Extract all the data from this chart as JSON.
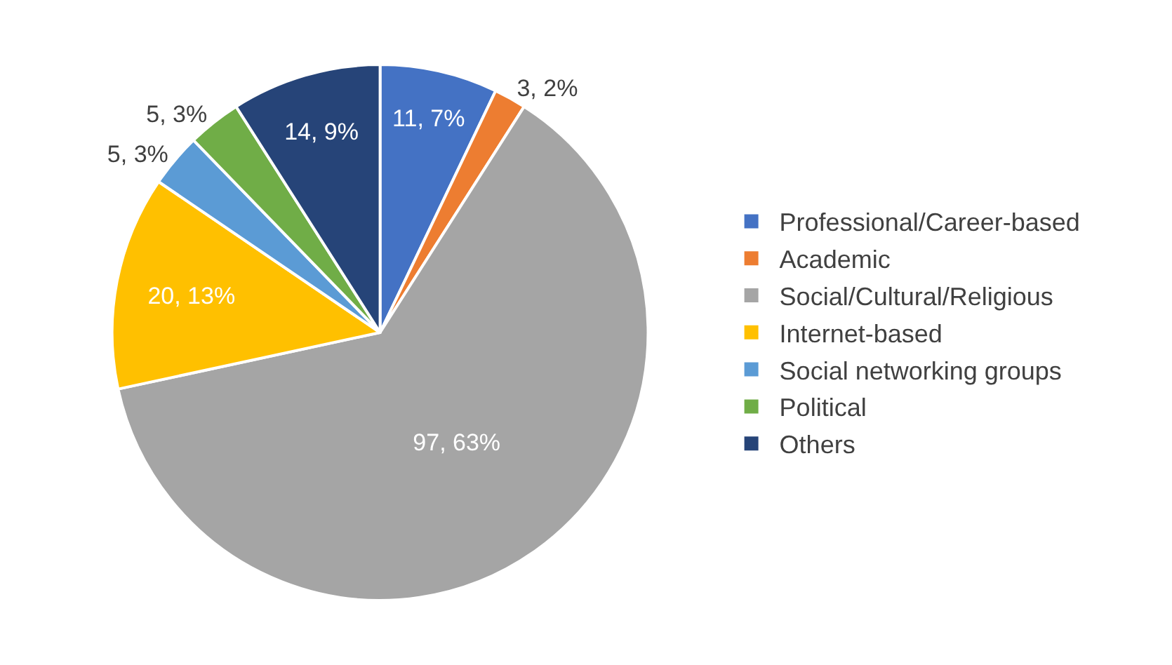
{
  "chart_data": {
    "type": "pie",
    "categories": [
      "Professional/Career-based",
      "Academic",
      "Social/Cultural/Religious",
      "Internet-based",
      "Social networking groups",
      "Political",
      "Others"
    ],
    "values": [
      11,
      3,
      97,
      20,
      5,
      5,
      14
    ],
    "colors": [
      "#4472c4",
      "#ed7d31",
      "#a5a5a5",
      "#ffc000",
      "#5b9bd5",
      "#70ad47",
      "#264478"
    ],
    "value_labels": [
      "11, 7%",
      "3, 2%",
      "97, 63%",
      "20, 13%",
      "5, 3%",
      "5, 3%",
      "14, 9%"
    ],
    "legend": "right"
  }
}
